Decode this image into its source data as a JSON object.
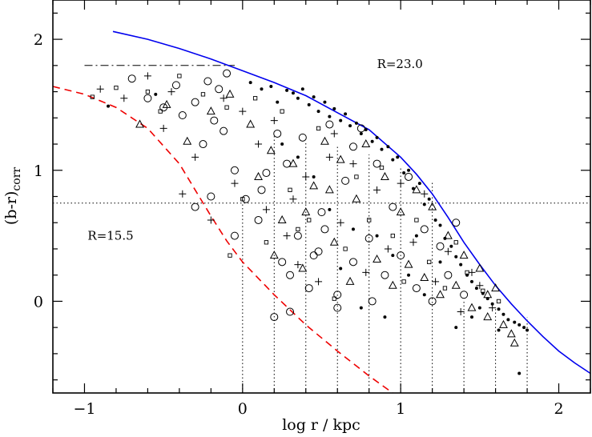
{
  "chart_data": {
    "type": "scatter",
    "title": "",
    "xlabel": "log r / kpc",
    "ylabel": "(b-r)",
    "ylabel_sub": "corr",
    "xlim": [
      -1.2,
      2.2
    ],
    "ylim": [
      -0.7,
      2.3
    ],
    "x_ticks": [
      {
        "value": -1,
        "label": "−1"
      },
      {
        "value": 0,
        "label": "0"
      },
      {
        "value": 1,
        "label": "1"
      },
      {
        "value": 2,
        "label": "2"
      }
    ],
    "y_ticks": [
      {
        "value": 0,
        "label": "0"
      },
      {
        "value": 1,
        "label": "1"
      },
      {
        "value": 2,
        "label": "2"
      }
    ],
    "annotations": [
      {
        "text": "R=23.0",
        "x": 0.85,
        "y": 1.78
      },
      {
        "text": "R=15.5",
        "x": -0.98,
        "y": 0.47
      }
    ],
    "model_curves": [
      {
        "name": "R=23.0",
        "color": "#0000ee",
        "style": "solid",
        "x": [
          -0.82,
          -0.6,
          -0.4,
          -0.2,
          0.0,
          0.2,
          0.4,
          0.6,
          0.8,
          1.0,
          1.1,
          1.2,
          1.3,
          1.4,
          1.5,
          1.6,
          1.7,
          1.8,
          1.9,
          2.0,
          2.1,
          2.2
        ],
        "y": [
          2.06,
          2.0,
          1.93,
          1.85,
          1.76,
          1.67,
          1.57,
          1.44,
          1.31,
          1.1,
          0.97,
          0.82,
          0.64,
          0.45,
          0.28,
          0.12,
          -0.02,
          -0.15,
          -0.27,
          -0.38,
          -0.47,
          -0.55
        ]
      },
      {
        "name": "R=15.5",
        "color": "#ee0000",
        "style": "dashed",
        "x": [
          -1.2,
          -1.0,
          -0.8,
          -0.6,
          -0.4,
          -0.3,
          -0.2,
          -0.1,
          0.0,
          0.2,
          0.4,
          0.6,
          0.8,
          0.95
        ],
        "y": [
          1.64,
          1.58,
          1.48,
          1.32,
          1.05,
          0.85,
          0.65,
          0.46,
          0.3,
          0.05,
          -0.18,
          -0.38,
          -0.57,
          -0.7
        ]
      }
    ],
    "reference_lines": [
      {
        "name": "dash-dot-line",
        "style": "dashdot",
        "x": [
          -1.0,
          -0.05
        ],
        "y": [
          1.8,
          1.8
        ]
      },
      {
        "name": "horizontal-dotted-line",
        "style": "dotted",
        "x": [
          -1.2,
          2.2
        ],
        "y": [
          0.75,
          0.75
        ]
      }
    ],
    "vertical_dotted_lines": [
      {
        "x": 0.0,
        "top": 0.75
      },
      {
        "x": 0.2,
        "top": 1.26
      },
      {
        "x": 0.4,
        "top": 1.22
      },
      {
        "x": 0.6,
        "top": 1.18
      },
      {
        "x": 0.8,
        "top": 1.12
      },
      {
        "x": 1.0,
        "top": 1.02
      },
      {
        "x": 1.2,
        "top": 0.92
      },
      {
        "x": 1.4,
        "top": 0.0
      },
      {
        "x": 1.6,
        "top": -0.06
      },
      {
        "x": 1.8,
        "top": -0.12
      }
    ],
    "series": [
      {
        "name": "",
        "marker": "dot",
        "points": [
          [
            -0.85,
            1.49
          ],
          [
            -0.55,
            1.58
          ],
          [
            0.05,
            1.67
          ],
          [
            0.12,
            1.62
          ],
          [
            0.18,
            1.64
          ],
          [
            0.22,
            1.52
          ],
          [
            0.28,
            1.61
          ],
          [
            0.32,
            1.59
          ],
          [
            0.35,
            1.55
          ],
          [
            0.38,
            1.62
          ],
          [
            0.42,
            1.5
          ],
          [
            0.45,
            1.56
          ],
          [
            0.48,
            1.45
          ],
          [
            0.52,
            1.52
          ],
          [
            0.55,
            1.41
          ],
          [
            0.58,
            1.47
          ],
          [
            0.62,
            1.38
          ],
          [
            0.65,
            1.43
          ],
          [
            0.68,
            1.34
          ],
          [
            0.72,
            1.36
          ],
          [
            0.75,
            1.28
          ],
          [
            0.78,
            1.31
          ],
          [
            0.82,
            1.22
          ],
          [
            0.85,
            1.25
          ],
          [
            0.88,
            1.16
          ],
          [
            0.92,
            1.18
          ],
          [
            0.95,
            1.08
          ],
          [
            0.98,
            1.1
          ],
          [
            1.02,
            0.98
          ],
          [
            1.05,
            1.0
          ],
          [
            1.08,
            0.86
          ],
          [
            1.12,
            0.9
          ],
          [
            1.15,
            0.74
          ],
          [
            1.18,
            0.78
          ],
          [
            1.22,
            0.62
          ],
          [
            1.25,
            0.58
          ],
          [
            1.28,
            0.48
          ],
          [
            1.32,
            0.42
          ],
          [
            1.35,
            0.34
          ],
          [
            1.38,
            0.28
          ],
          [
            1.42,
            0.2
          ],
          [
            1.45,
            0.15
          ],
          [
            1.48,
            0.1
          ],
          [
            1.52,
            0.06
          ],
          [
            1.55,
            0.02
          ],
          [
            1.58,
            -0.02
          ],
          [
            1.62,
            -0.06
          ],
          [
            1.65,
            -0.1
          ],
          [
            1.68,
            -0.14
          ],
          [
            1.72,
            -0.16
          ],
          [
            1.75,
            -0.18
          ],
          [
            1.78,
            -0.2
          ],
          [
            1.8,
            -0.22
          ],
          [
            1.75,
            -0.55
          ],
          [
            1.35,
            -0.2
          ],
          [
            1.45,
            -0.12
          ],
          [
            1.15,
            0.05
          ],
          [
            1.05,
            0.2
          ],
          [
            0.95,
            0.35
          ],
          [
            0.85,
            0.5
          ],
          [
            0.7,
            0.55
          ],
          [
            0.55,
            0.7
          ],
          [
            0.45,
            0.95
          ],
          [
            0.35,
            1.1
          ],
          [
            0.25,
            1.2
          ],
          [
            0.62,
            0.25
          ],
          [
            0.75,
            -0.05
          ],
          [
            0.9,
            -0.12
          ],
          [
            1.1,
            0.5
          ],
          [
            1.25,
            0.3
          ],
          [
            1.5,
            -0.05
          ],
          [
            1.62,
            -0.22
          ]
        ]
      },
      {
        "name": "",
        "marker": "circle",
        "points": [
          [
            -0.7,
            1.7
          ],
          [
            -0.6,
            1.55
          ],
          [
            -0.5,
            1.48
          ],
          [
            -0.42,
            1.65
          ],
          [
            -0.38,
            1.42
          ],
          [
            -0.3,
            1.52
          ],
          [
            -0.25,
            1.2
          ],
          [
            -0.22,
            1.68
          ],
          [
            -0.18,
            1.38
          ],
          [
            -0.15,
            1.62
          ],
          [
            -0.12,
            1.3
          ],
          [
            -0.1,
            1.74
          ],
          [
            -0.05,
            1.0
          ],
          [
            -0.2,
            0.8
          ],
          [
            -0.3,
            0.72
          ],
          [
            0.02,
            0.78
          ],
          [
            -0.05,
            0.5
          ],
          [
            0.1,
            0.62
          ],
          [
            0.15,
            0.98
          ],
          [
            0.22,
            1.28
          ],
          [
            0.25,
            0.3
          ],
          [
            0.3,
            0.2
          ],
          [
            0.35,
            0.5
          ],
          [
            0.38,
            1.25
          ],
          [
            0.42,
            0.1
          ],
          [
            0.45,
            0.35
          ],
          [
            0.5,
            0.68
          ],
          [
            0.55,
            1.35
          ],
          [
            0.52,
            0.55
          ],
          [
            0.6,
            0.05
          ],
          [
            0.65,
            0.92
          ],
          [
            0.7,
            0.3
          ],
          [
            0.75,
            1.32
          ],
          [
            0.8,
            0.48
          ],
          [
            0.82,
            0.0
          ],
          [
            0.85,
            1.05
          ],
          [
            0.9,
            0.2
          ],
          [
            0.95,
            0.72
          ],
          [
            1.0,
            0.35
          ],
          [
            1.05,
            0.95
          ],
          [
            1.1,
            0.1
          ],
          [
            1.15,
            0.55
          ],
          [
            1.2,
            0.0
          ],
          [
            1.25,
            0.42
          ],
          [
            1.3,
            0.2
          ],
          [
            1.35,
            0.6
          ],
          [
            1.4,
            0.05
          ],
          [
            0.3,
            -0.08
          ],
          [
            0.2,
            -0.12
          ],
          [
            0.6,
            -0.05
          ],
          [
            0.48,
            0.38
          ],
          [
            0.12,
            0.85
          ],
          [
            0.28,
            1.05
          ],
          [
            0.7,
            1.18
          ]
        ]
      },
      {
        "name": "",
        "marker": "triangle",
        "points": [
          [
            -0.65,
            1.35
          ],
          [
            -0.48,
            1.5
          ],
          [
            -0.35,
            1.22
          ],
          [
            -0.2,
            1.45
          ],
          [
            -0.08,
            1.58
          ],
          [
            0.05,
            1.35
          ],
          [
            0.1,
            0.95
          ],
          [
            0.18,
            1.15
          ],
          [
            0.25,
            0.62
          ],
          [
            0.32,
            1.05
          ],
          [
            0.38,
            0.25
          ],
          [
            0.45,
            0.88
          ],
          [
            0.52,
            1.22
          ],
          [
            0.58,
            0.45
          ],
          [
            0.62,
            1.08
          ],
          [
            0.68,
            0.15
          ],
          [
            0.72,
            0.78
          ],
          [
            0.78,
            1.2
          ],
          [
            0.85,
            0.32
          ],
          [
            0.9,
            0.95
          ],
          [
            0.95,
            0.12
          ],
          [
            1.0,
            0.68
          ],
          [
            1.05,
            0.28
          ],
          [
            1.1,
            0.85
          ],
          [
            1.15,
            0.18
          ],
          [
            1.2,
            0.72
          ],
          [
            1.25,
            0.05
          ],
          [
            1.3,
            0.5
          ],
          [
            1.35,
            0.12
          ],
          [
            1.4,
            0.35
          ],
          [
            1.45,
            -0.05
          ],
          [
            1.5,
            0.25
          ],
          [
            1.55,
            -0.12
          ],
          [
            1.6,
            0.1
          ],
          [
            1.65,
            -0.18
          ],
          [
            1.7,
            -0.25
          ],
          [
            1.72,
            -0.32
          ],
          [
            1.55,
            0.05
          ],
          [
            0.4,
            0.68
          ],
          [
            0.2,
            0.35
          ],
          [
            0.55,
            0.85
          ]
        ]
      },
      {
        "name": "",
        "marker": "plus",
        "points": [
          [
            -0.9,
            1.62
          ],
          [
            -0.75,
            1.55
          ],
          [
            -0.6,
            1.72
          ],
          [
            -0.45,
            1.6
          ],
          [
            -0.38,
            0.82
          ],
          [
            -0.2,
            0.62
          ],
          [
            -0.3,
            1.1
          ],
          [
            -0.12,
            1.55
          ],
          [
            -0.05,
            0.9
          ],
          [
            0.0,
            1.45
          ],
          [
            0.1,
            1.2
          ],
          [
            0.15,
            0.7
          ],
          [
            0.2,
            1.38
          ],
          [
            0.28,
            0.5
          ],
          [
            0.35,
            0.28
          ],
          [
            0.4,
            0.95
          ],
          [
            0.48,
            0.15
          ],
          [
            0.55,
            1.1
          ],
          [
            0.62,
            0.6
          ],
          [
            0.7,
            1.05
          ],
          [
            0.78,
            0.22
          ],
          [
            0.85,
            0.85
          ],
          [
            0.92,
            0.4
          ],
          [
            1.0,
            0.9
          ],
          [
            1.08,
            0.45
          ],
          [
            1.15,
            0.82
          ],
          [
            1.22,
            0.15
          ],
          [
            1.3,
            0.38
          ],
          [
            1.38,
            -0.08
          ],
          [
            1.45,
            0.22
          ],
          [
            1.5,
            0.12
          ],
          [
            1.58,
            -0.05
          ],
          [
            -0.5,
            1.32
          ],
          [
            0.58,
            1.28
          ],
          [
            0.32,
            0.78
          ]
        ]
      },
      {
        "name": "",
        "marker": "square",
        "points": [
          [
            -0.95,
            1.56
          ],
          [
            -0.8,
            1.63
          ],
          [
            -0.52,
            1.45
          ],
          [
            -0.4,
            1.72
          ],
          [
            -0.25,
            1.58
          ],
          [
            -0.1,
            1.48
          ],
          [
            0.0,
            0.78
          ],
          [
            -0.08,
            0.35
          ],
          [
            0.08,
            1.55
          ],
          [
            0.15,
            0.45
          ],
          [
            0.25,
            1.45
          ],
          [
            0.3,
            0.85
          ],
          [
            0.42,
            0.62
          ],
          [
            0.48,
            1.32
          ],
          [
            0.58,
            0.02
          ],
          [
            0.65,
            0.4
          ],
          [
            0.72,
            0.95
          ],
          [
            0.8,
            0.62
          ],
          [
            0.88,
            1.02
          ],
          [
            0.95,
            0.5
          ],
          [
            1.02,
            0.15
          ],
          [
            1.1,
            0.62
          ],
          [
            1.18,
            0.3
          ],
          [
            1.28,
            0.1
          ],
          [
            1.35,
            0.45
          ],
          [
            1.42,
            0.22
          ],
          [
            1.52,
            0.08
          ],
          [
            1.62,
            0.0
          ],
          [
            -0.6,
            1.6
          ],
          [
            0.35,
            0.55
          ]
        ]
      }
    ]
  }
}
